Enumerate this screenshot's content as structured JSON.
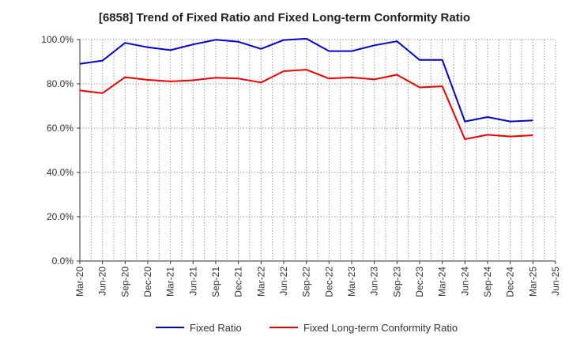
{
  "chart_data": {
    "type": "line",
    "title": "[6858]  Trend of Fixed Ratio and Fixed Long-term Conformity Ratio",
    "xlabel": "",
    "ylabel": "",
    "ylim": [
      0,
      100
    ],
    "yticks": [
      0,
      20,
      40,
      60,
      80,
      100
    ],
    "ytick_labels": [
      "0.0%",
      "20.0%",
      "40.0%",
      "60.0%",
      "80.0%",
      "100.0%"
    ],
    "grid": true,
    "legend_position": "bottom",
    "x": [
      "Mar-20",
      "Jun-20",
      "Sep-20",
      "Dec-20",
      "Mar-21",
      "Jun-21",
      "Sep-21",
      "Dec-21",
      "Mar-22",
      "Jun-22",
      "Sep-22",
      "Dec-22",
      "Mar-23",
      "Jun-23",
      "Sep-23",
      "Dec-23",
      "Mar-24",
      "Jun-24",
      "Sep-24",
      "Dec-24",
      "Mar-25",
      "Jun-25"
    ],
    "series": [
      {
        "name": "Fixed Ratio",
        "color": "#0000cc",
        "values": [
          89.0,
          90.5,
          98.5,
          96.5,
          95.2,
          97.8,
          99.9,
          99.0,
          95.8,
          99.8,
          100.4,
          94.8,
          94.8,
          97.4,
          99.2,
          90.8,
          90.8,
          63.0,
          65.0,
          63.0,
          63.5,
          null
        ]
      },
      {
        "name": "Fixed Long-term Conformity Ratio",
        "color": "#ee0000",
        "values": [
          77.0,
          75.8,
          83.0,
          81.8,
          81.1,
          81.6,
          82.8,
          82.4,
          80.6,
          85.7,
          86.4,
          82.4,
          82.9,
          82.0,
          84.1,
          78.4,
          78.9,
          55.0,
          57.0,
          56.2,
          56.8,
          null
        ]
      }
    ]
  }
}
